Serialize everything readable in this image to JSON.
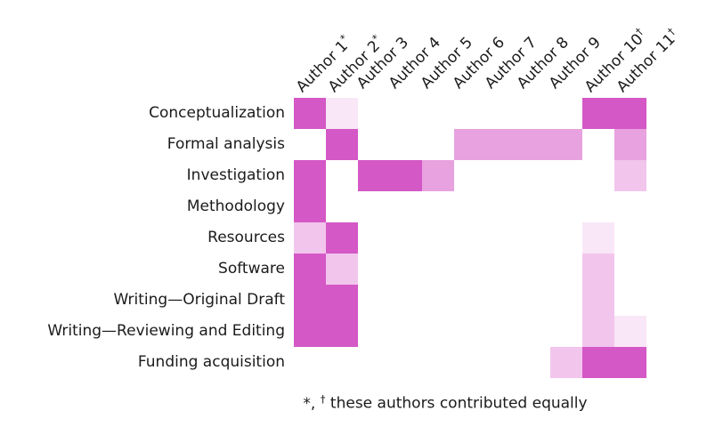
{
  "page": {
    "background": "#ffffff"
  },
  "chart_data": {
    "type": "heatmap",
    "description": "Author contribution matrix (CRediT-style): rows are contribution categories, columns are authors, cell shade indicates contribution level",
    "columns": [
      {
        "label": "Author 1",
        "sup": "*"
      },
      {
        "label": "Author 2",
        "sup": "*"
      },
      {
        "label": "Author 3",
        "sup": ""
      },
      {
        "label": "Author 4",
        "sup": ""
      },
      {
        "label": "Author 5",
        "sup": ""
      },
      {
        "label": "Author 6",
        "sup": ""
      },
      {
        "label": "Author 7",
        "sup": ""
      },
      {
        "label": "Author 8",
        "sup": ""
      },
      {
        "label": "Author 9",
        "sup": ""
      },
      {
        "label": "Author 10",
        "sup": "†"
      },
      {
        "label": "Author 11",
        "sup": "†"
      }
    ],
    "rows": [
      "Conceptualization",
      "Formal analysis",
      "Investigation",
      "Methodology",
      "Resources",
      "Software",
      "Writing—Original Draft",
      "Writing—Reviewing and Editing",
      "Funding acquisition"
    ],
    "levels": {
      "0": "none",
      "1": "very-light",
      "2": "light",
      "3": "medium",
      "4": "dark"
    },
    "level_colors": [
      "#ffffff",
      "#f9e7f7",
      "#f2c5ec",
      "#e8a2df",
      "#d458c6"
    ],
    "values": [
      [
        4,
        1,
        0,
        0,
        0,
        0,
        0,
        0,
        0,
        4,
        4
      ],
      [
        0,
        4,
        0,
        0,
        0,
        3,
        3,
        3,
        3,
        0,
        3
      ],
      [
        4,
        0,
        4,
        4,
        3,
        0,
        0,
        0,
        0,
        0,
        2
      ],
      [
        4,
        0,
        0,
        0,
        0,
        0,
        0,
        0,
        0,
        0,
        0
      ],
      [
        2,
        4,
        0,
        0,
        0,
        0,
        0,
        0,
        0,
        1,
        0
      ],
      [
        4,
        2,
        0,
        0,
        0,
        0,
        0,
        0,
        0,
        2,
        0
      ],
      [
        4,
        4,
        0,
        0,
        0,
        0,
        0,
        0,
        0,
        2,
        0
      ],
      [
        4,
        4,
        0,
        0,
        0,
        0,
        0,
        0,
        0,
        2,
        1
      ],
      [
        0,
        0,
        0,
        0,
        0,
        0,
        0,
        0,
        2,
        4,
        4
      ]
    ],
    "footnote": {
      "part1": "*, ",
      "sup": "†",
      "part2": " these authors contributed equally"
    }
  }
}
